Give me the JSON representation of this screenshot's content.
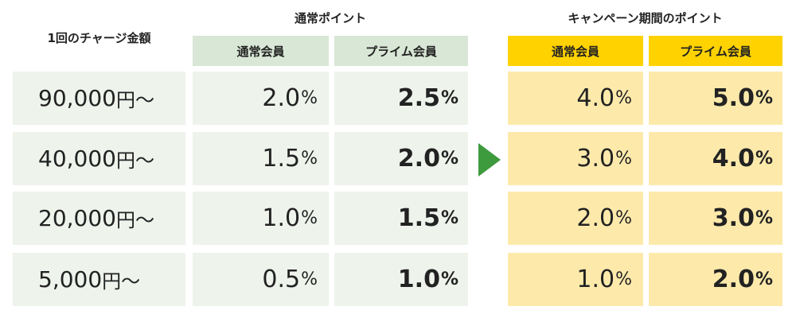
{
  "header": {
    "charge_amount_label": "1回のチャージ金額",
    "normal_points_title": "通常ポイント",
    "campaign_points_title": "キャンペーン期間のポイント",
    "normal_member": "通常会員",
    "prime_member": "プライム会員"
  },
  "rows": [
    {
      "amount": "90,000",
      "yen": "円〜",
      "normal": "2.0",
      "prime": "2.5",
      "campaign_normal": "4.0",
      "campaign_prime": "5.0"
    },
    {
      "amount": "40,000",
      "yen": "円〜",
      "normal": "1.5",
      "prime": "2.0",
      "campaign_normal": "3.0",
      "campaign_prime": "4.0"
    },
    {
      "amount": "20,000",
      "yen": "円〜",
      "normal": "1.0",
      "prime": "1.5",
      "campaign_normal": "2.0",
      "campaign_prime": "3.0"
    },
    {
      "amount": "5,000",
      "yen": "円〜",
      "normal": "0.5",
      "prime": "1.0",
      "campaign_normal": "1.0",
      "campaign_prime": "2.0"
    }
  ],
  "percent_symbol": "%",
  "colors": {
    "normal_header_bg": "#d9e7d6",
    "normal_cell_bg": "#eef3ec",
    "campaign_header_bg": "#ffd200",
    "campaign_cell_bg": "#fdeaab",
    "arrow": "#3d9a3d"
  },
  "arrow_icon": "play-triangle-icon"
}
